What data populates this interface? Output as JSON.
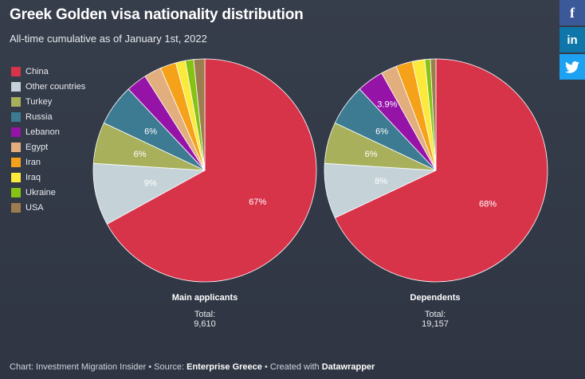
{
  "title": "Greek Golden visa nationality distribution",
  "subtitle": "All-time cumulative as of January 1st, 2022",
  "social": {
    "facebook": "f",
    "linkedin": "in",
    "twitter": "twitter-bird-icon"
  },
  "colors": {
    "China": "#d7344a",
    "Other countries": "#c5d3d9",
    "Turkey": "#a8b05c",
    "Russia": "#3d7b93",
    "Lebanon": "#9613a8",
    "Egypt": "#e2ae7e",
    "Iran": "#f5a21a",
    "Iraq": "#fbe93c",
    "Ukraine": "#86c213",
    "USA": "#9c7d4d"
  },
  "chart_data": {
    "type": "pie",
    "categories": [
      "China",
      "Other countries",
      "Turkey",
      "Russia",
      "Lebanon",
      "Egypt",
      "Iran",
      "Iraq",
      "Ukraine",
      "USA"
    ],
    "series": [
      {
        "name": "Main applicants",
        "total_label": "Total:",
        "total": "9,610",
        "values": [
          67,
          9,
          6,
          6,
          3,
          2.5,
          2.3,
          1.4,
          1.2,
          1.6
        ],
        "labels": [
          "67%",
          "9%",
          "6%",
          "6%",
          "",
          "",
          "",
          "",
          "",
          ""
        ]
      },
      {
        "name": "Dependents",
        "total_label": "Total:",
        "total": "19,157",
        "values": [
          68,
          8,
          6,
          6,
          3.9,
          2.3,
          2.4,
          1.8,
          0.8,
          0.8
        ],
        "labels": [
          "68%",
          "8%",
          "6%",
          "6%",
          "3.9%",
          "",
          "",
          "",
          "",
          ""
        ]
      }
    ]
  },
  "footer": {
    "prefix": "Chart: Investment Migration Insider • Source: ",
    "source": "Enterprise Greece",
    "middle": " • Created with ",
    "tool": "Datawrapper"
  }
}
